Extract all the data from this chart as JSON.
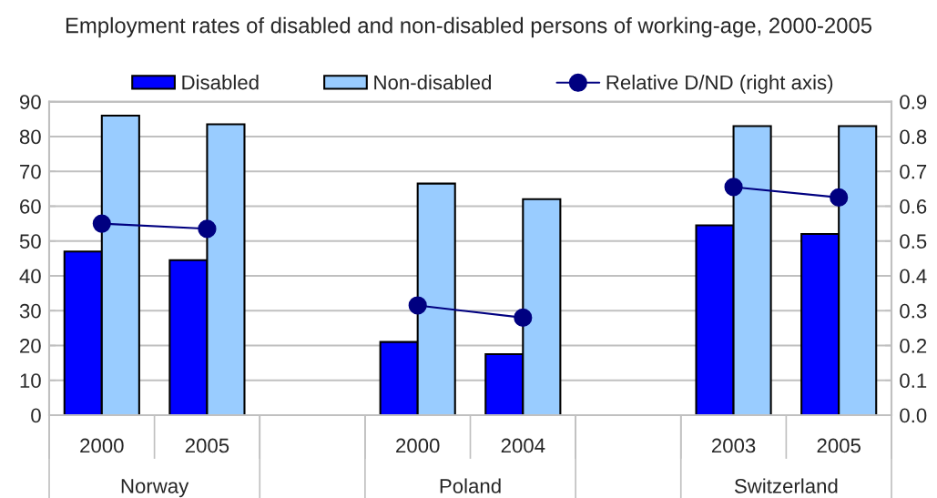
{
  "chart_data": {
    "type": "bar",
    "title": "Employment rates of disabled and non-disabled persons of working-age, 2000-2005",
    "categories": [
      "2000",
      "2005",
      null,
      "2000",
      "2004",
      null,
      "2003",
      "2005"
    ],
    "series": [
      {
        "name": "Disabled",
        "color": "#0000ff",
        "values": [
          47,
          44.5,
          null,
          21,
          17.5,
          null,
          54.5,
          52
        ]
      },
      {
        "name": "Non-disabled",
        "color": "#99ccff",
        "values": [
          86,
          83.5,
          null,
          66.5,
          62,
          null,
          83,
          83
        ]
      },
      {
        "name": "Relative D/ND (right axis)",
        "type": "line",
        "axis": "y2",
        "color": "#000080",
        "marker": "circle",
        "values": [
          0.55,
          0.535,
          null,
          0.315,
          0.28,
          null,
          0.655,
          0.625
        ]
      }
    ],
    "ylim": [
      0,
      90
    ],
    "yticks": [
      0,
      10,
      20,
      30,
      40,
      50,
      60,
      70,
      80,
      90
    ],
    "y2lim": [
      0,
      0.9
    ],
    "y2ticks": [
      {
        "value": 0,
        "label": "0.0"
      },
      0.1,
      0.2,
      0.3,
      0.4,
      0.5,
      0.6,
      0.7,
      0.8,
      0.9
    ],
    "grid": "y",
    "legend": "top",
    "annotations": [
      "Norway",
      "Poland",
      "Switzerland"
    ]
  }
}
